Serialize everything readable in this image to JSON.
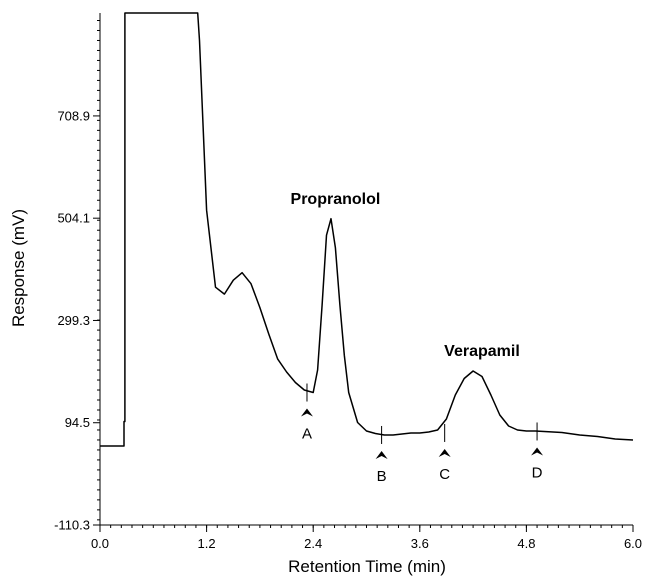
{
  "chart_data": {
    "type": "line",
    "title": "",
    "xlabel": "Retention Time (min)",
    "ylabel": "Response (mV)",
    "xlim": [
      0.0,
      6.0
    ],
    "ylim": [
      -110.3,
      915.0
    ],
    "x_ticks": [
      "0.0",
      "1.2",
      "2.4",
      "3.6",
      "4.8",
      "6.0"
    ],
    "y_ticks": [
      "-110.3",
      "94.5",
      "299.3",
      "504.1",
      "708.9"
    ],
    "grid": false,
    "series": [
      {
        "name": "",
        "color": "#000000",
        "x": [
          0.0,
          0.27,
          0.27,
          0.28,
          0.28,
          1.1,
          1.12,
          1.2,
          1.3,
          1.4,
          1.5,
          1.6,
          1.7,
          1.8,
          1.9,
          2.0,
          2.1,
          2.2,
          2.3,
          2.4,
          2.45,
          2.5,
          2.55,
          2.6,
          2.65,
          2.7,
          2.75,
          2.8,
          2.9,
          3.0,
          3.1,
          3.2,
          3.3,
          3.4,
          3.5,
          3.6,
          3.7,
          3.8,
          3.9,
          4.0,
          4.1,
          4.2,
          4.3,
          4.4,
          4.5,
          4.6,
          4.7,
          4.8,
          4.9,
          5.0,
          5.2,
          5.4,
          5.6,
          5.8,
          6.0
        ],
        "y": [
          48,
          48,
          97,
          97,
          915,
          915,
          860,
          520,
          366,
          352,
          380,
          395,
          373,
          325,
          272,
          222,
          196,
          175,
          160,
          155,
          200,
          330,
          470,
          503,
          445,
          330,
          230,
          155,
          95,
          78,
          73,
          70,
          70,
          72,
          74,
          74,
          76,
          80,
          102,
          150,
          183,
          198,
          187,
          150,
          110,
          88,
          80,
          78,
          78,
          77,
          75,
          70,
          67,
          62,
          60
        ]
      }
    ],
    "annotations": [
      {
        "text": "Propranolol",
        "x": 2.65,
        "y": 533
      },
      {
        "text": "Verapamil",
        "x": 4.3,
        "y": 228
      }
    ],
    "markers": [
      {
        "text": "A",
        "x": 2.33,
        "y": 155
      },
      {
        "text": "B",
        "x": 3.17,
        "y": 70
      },
      {
        "text": "C",
        "x": 3.88,
        "y": 74
      },
      {
        "text": "D",
        "x": 4.92,
        "y": 77
      }
    ]
  }
}
